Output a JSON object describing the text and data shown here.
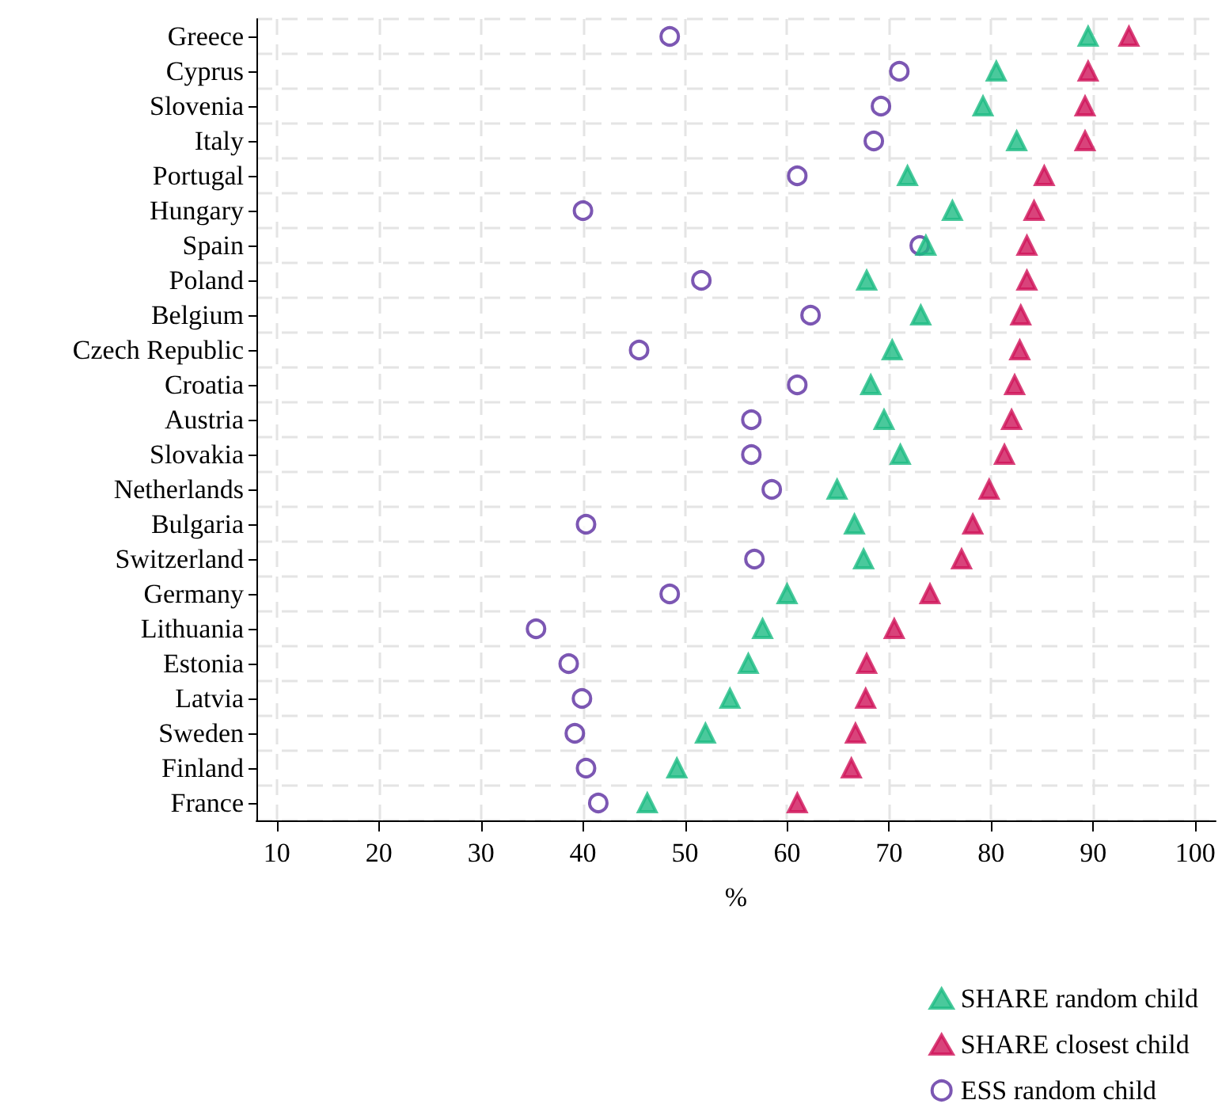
{
  "chart_data": {
    "type": "scatter",
    "orientation": "horizontal",
    "xlabel": "%",
    "categories": [
      "Greece",
      "Cyprus",
      "Slovenia",
      "Italy",
      "Portugal",
      "Hungary",
      "Spain",
      "Poland",
      "Belgium",
      "Czech Republic",
      "Croatia",
      "Austria",
      "Slovakia",
      "Netherlands",
      "Bulgaria",
      "Switzerland",
      "Germany",
      "Lithuania",
      "Estonia",
      "Latvia",
      "Sweden",
      "Finland",
      "France"
    ],
    "series": [
      {
        "name": "SHARE random child",
        "color": "#1dbb83",
        "marker": "triangle",
        "values": [
          89.5,
          80.5,
          79.2,
          82.5,
          71.8,
          76.2,
          73.6,
          67.8,
          73.1,
          70.3,
          68.2,
          69.5,
          71.1,
          64.9,
          66.6,
          67.5,
          60,
          57.6,
          56.2,
          54.4,
          52,
          49.2,
          46.3
        ]
      },
      {
        "name": "SHARE closest child",
        "color": "#d0145a",
        "marker": "triangle",
        "values": [
          93.5,
          89.5,
          89.2,
          89.2,
          85.2,
          84.2,
          83.5,
          83.5,
          82.9,
          82.8,
          82.3,
          82,
          81.3,
          79.8,
          78.2,
          77.1,
          74,
          70.5,
          67.8,
          67.7,
          66.7,
          66.3,
          61
        ]
      },
      {
        "name": "ESS random child",
        "color": "#5b2da0",
        "marker": "circle",
        "values": [
          48.5,
          71,
          69.2,
          68.5,
          61,
          40,
          73,
          51.6,
          62.3,
          45.5,
          61,
          56.5,
          56.5,
          58.5,
          40.3,
          56.8,
          48.5,
          35.4,
          38.6,
          39.9,
          39.2,
          40.3,
          41.5
        ]
      }
    ],
    "xlim": [
      8,
      102
    ],
    "xticks": [
      10,
      20,
      30,
      40,
      50,
      60,
      70,
      80,
      90,
      100
    ],
    "grid": true,
    "legend": "bottom right"
  }
}
